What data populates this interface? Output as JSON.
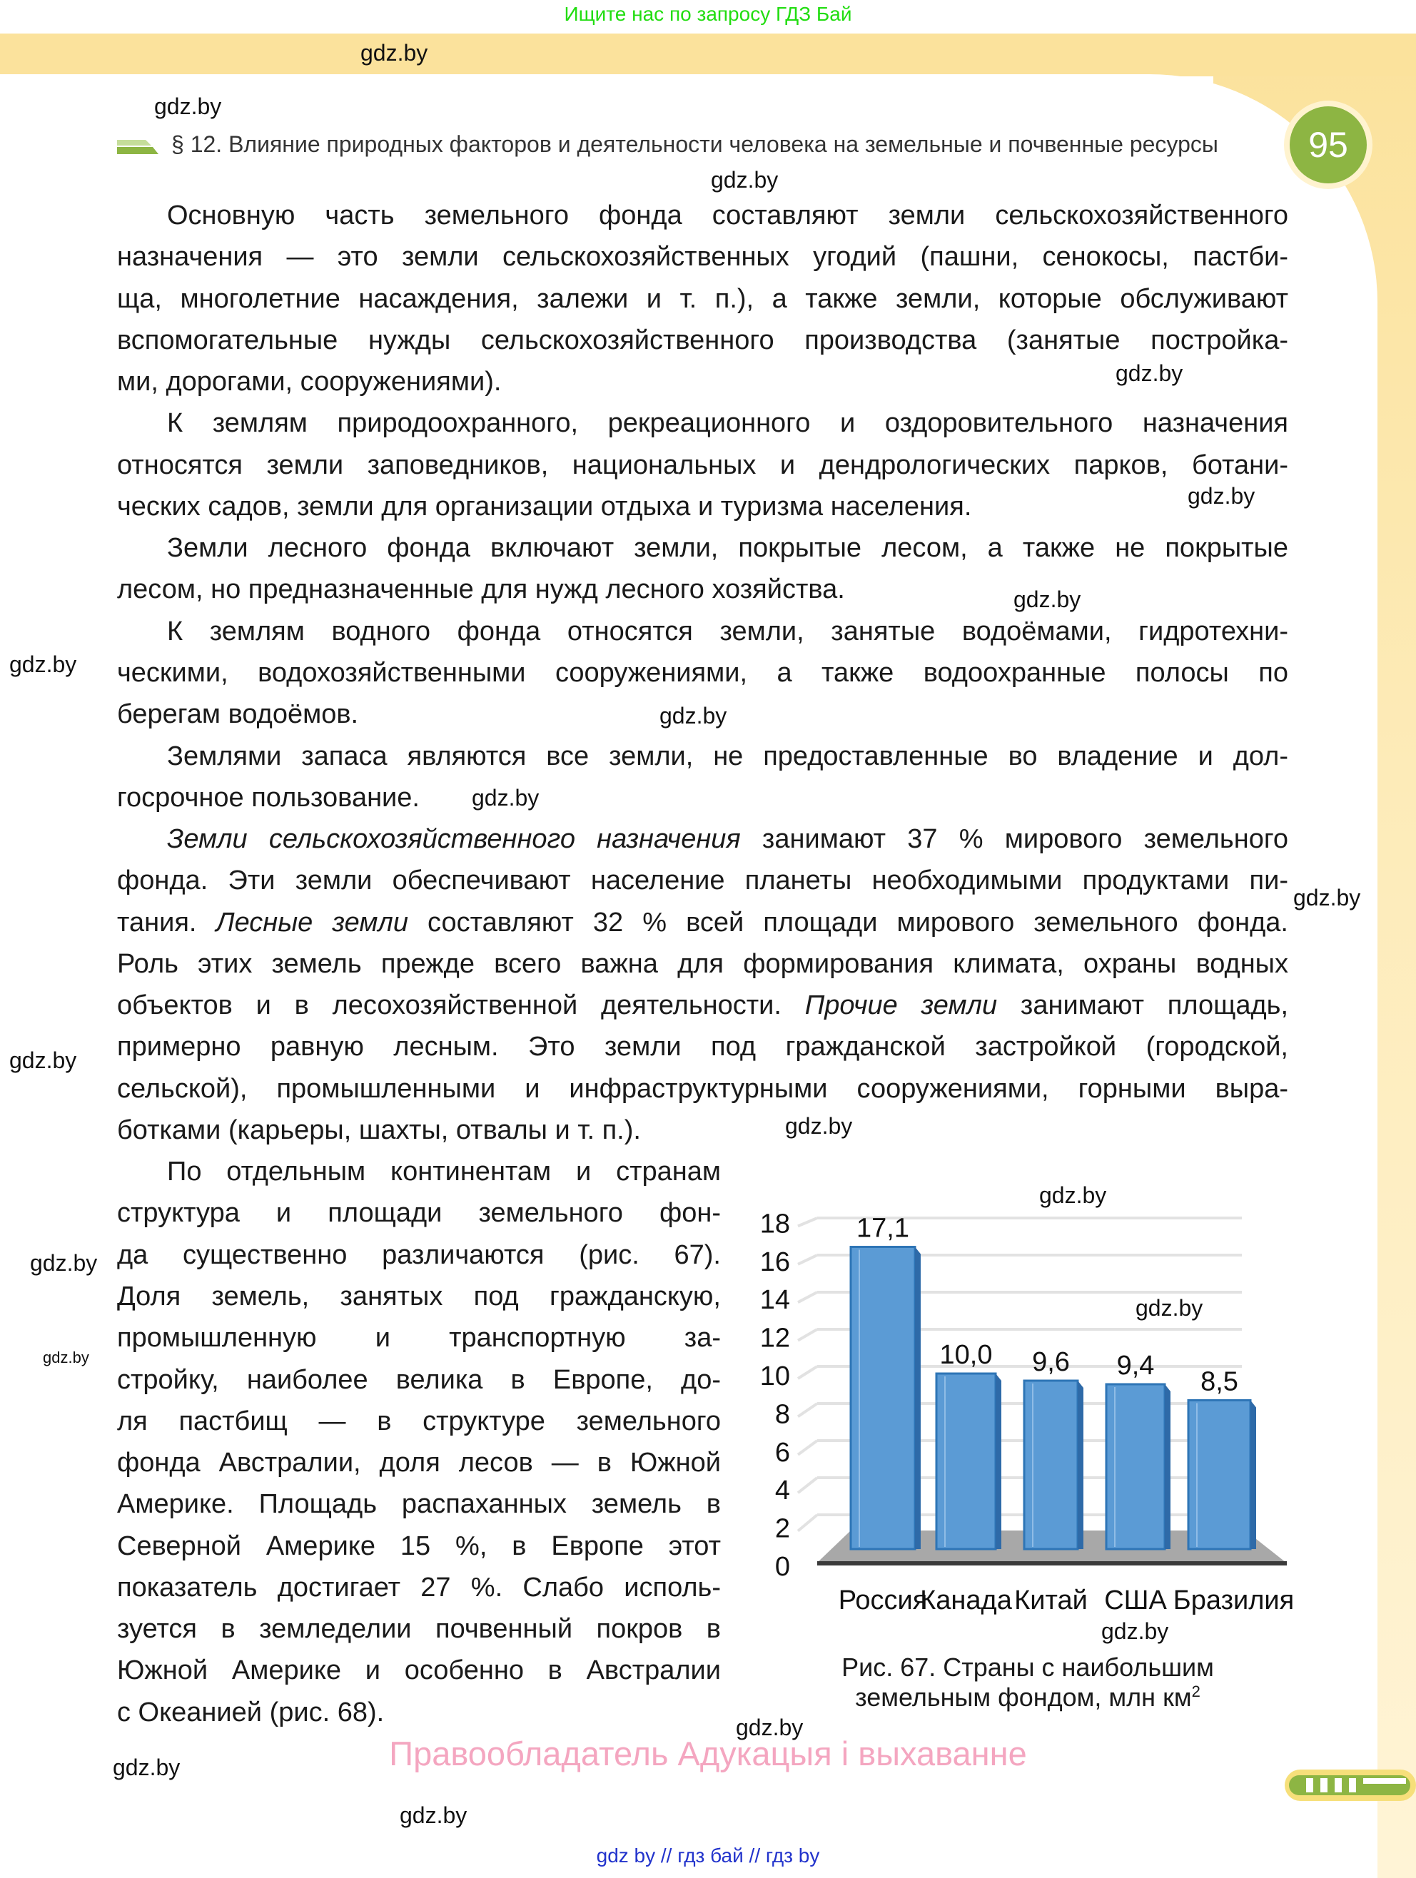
{
  "top_banner": "Ищите нас по запросу ГДЗ Бай",
  "header": {
    "section_title": "§ 12. Влияние природных факторов и деятельности человека на земельные и почвенные ресурсы",
    "page_number": "95"
  },
  "watermark": "gdz.by",
  "body": {
    "paragraphs": [
      [
        [
          "Основную часть земельного фонда составляют земли сельскохозяйственного"
        ],
        [
          "назначения — это земли сельскохозяйственных угодий (пашни, сенокосы, пастби-"
        ],
        [
          "ща, многолетние насаждения, залежи и т. п.), а также земли, которые обслуживают"
        ],
        [
          "вспомогательные нужды сельскохозяйственного производства (занятые постройка-"
        ],
        [
          "ми, дорогами, сооружениями)."
        ]
      ],
      [
        [
          "К землям природоохранного, рекреационного и оздоровительного назначения"
        ],
        [
          "относятся земли заповедников, национальных и дендрологических парков, ботани-"
        ],
        [
          "ческих садов, земли для организации отдыха и туризма населения."
        ]
      ],
      [
        [
          "Земли лесного фонда включают земли, покрытые лесом, а также не покрытые"
        ],
        [
          "лесом, но предназначенные для нужд лесного хозяйства."
        ]
      ],
      [
        [
          "К землям водного фонда относятся земли, занятые водоёмами, гидротехни-"
        ],
        [
          "ческими, водохозяйственными сооружениями, а также водоохранные полосы по"
        ],
        [
          "берегам водоёмов."
        ]
      ],
      [
        [
          "Землями запаса являются все земли, не предоставленные во владение и дол-"
        ],
        [
          "госрочное пользование."
        ]
      ],
      [
        [
          {
            "em": "Земли сельскохозяйственного назначения"
          },
          " занимают 37 % мирового земельного"
        ],
        [
          "фонда. Эти земли обеспечивают население планеты необходимыми продуктами пи-"
        ],
        [
          "тания. ",
          {
            "em": "Лесные земли"
          },
          " составляют 32 % всей площади мирового земельного фонда."
        ],
        [
          "Роль этих земель прежде всего важна для формирования климата, охраны водных"
        ],
        [
          "объектов и в лесохозяйственной деятельности. ",
          {
            "em": "Прочие земли"
          },
          " занимают площадь,"
        ],
        [
          "примерно равную лесным. Это земли под гражданской застройкой (городской,"
        ],
        [
          "сельской), промышленными и инфраструктурными сооружениями, горными выра-"
        ],
        [
          "ботками (карьеры, шахты, отвалы и т. п.)."
        ]
      ],
      [
        [
          "По отдельным континентам и странам"
        ],
        [
          "структура и площади земельного фон-"
        ],
        [
          "да существенно различаются (рис. 67)."
        ],
        [
          "Доля земель, занятых под гражданскую,"
        ],
        [
          "промышленную и транспортную за-"
        ],
        [
          "стройку, наиболее велика в Европе, до-"
        ],
        [
          "ля пастбищ — в структуре земельного"
        ],
        [
          "фонда Австралии, доля лесов — в Южной"
        ],
        [
          "Америке. Площадь распаханных земель в"
        ],
        [
          "Северной Америке 15 %, в Европе этот"
        ],
        [
          "показатель достигает 27 %. Слабо исполь-"
        ],
        [
          "зуется в земледелии почвенный покров в"
        ],
        [
          "Южной Америке и особенно в Австралии"
        ],
        [
          "с Океанией (рис. 68)."
        ]
      ]
    ]
  },
  "chart_data": {
    "type": "bar",
    "categories": [
      "Россия",
      "Канада",
      "Китай",
      "США",
      "Бразилия"
    ],
    "values": [
      17.1,
      10.0,
      9.6,
      9.4,
      8.5
    ],
    "value_labels": [
      "17,1",
      "10,0",
      "9,6",
      "9,4",
      "8,5"
    ],
    "y_ticks": [
      "0",
      "2",
      "4",
      "6",
      "8",
      "10",
      "12",
      "14",
      "16",
      "18"
    ],
    "ylim": [
      0,
      18
    ],
    "grid": true,
    "bar_color": "#5b9bd5",
    "caption_line1": "Рис. 67. Страны с наибольшим",
    "caption_line2": "земельным фондом, млн км",
    "caption_sup": "2"
  },
  "footer": {
    "rights": "Правообладатель Адукацыя і выхаванне",
    "links": "gdz by  //  гдз бай  //  гдз by"
  },
  "colors": {
    "accent_green": "#8db543",
    "band_yellow": "#fbe29c",
    "banner_green": "#22dd11",
    "rights_pink": "#f4a6c0",
    "link_blue": "#2233cc"
  }
}
